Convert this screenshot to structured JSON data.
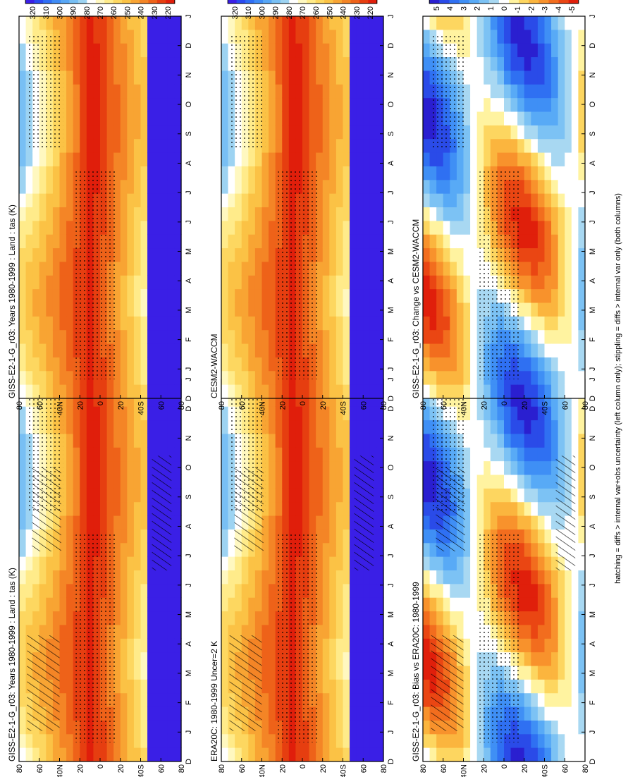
{
  "palettes": {
    "temperature": [
      "#3a1fe6",
      "#2a4af0",
      "#2f6ef5",
      "#3f8cf6",
      "#58a7f6",
      "#78bff4",
      "#9dd3f2",
      "#ffffff",
      "#fff8c0",
      "#ffeb8a",
      "#fdd760",
      "#fbc245",
      "#f8a433",
      "#f48526",
      "#ee6219",
      "#e63e10",
      "#e01e0b"
    ],
    "difference": [
      "#2a1fd0",
      "#2a4be8",
      "#2f70f2",
      "#3f8ff5",
      "#58aaf6",
      "#7cc2f4",
      "#a8d8f2",
      "#ffffff",
      "#fff3a0",
      "#fdd660",
      "#fbb53e",
      "#f8922c",
      "#f26d1e",
      "#ea4613",
      "#e01f0b"
    ]
  },
  "footer": {
    "note": "hatching = diffs > internal var+obs uncertainty (left column only); stippling = diffs > internal var only (both columns)"
  },
  "chart_data": [
    {
      "id": "p1",
      "type": "heatmap",
      "title": "GISS-E2-1-G_r03: Years 1980-1999 : Land : tas (K)",
      "x_ticks": [
        "D",
        "J",
        "F",
        "M",
        "A",
        "M",
        "J",
        "J",
        "A",
        "S",
        "O",
        "N",
        "D",
        "J"
      ],
      "y_ticks": [
        "80",
        "60",
        "40N",
        "20",
        "0",
        "20",
        "40S",
        "60",
        "80"
      ],
      "colorbar": {
        "ticks": [
          "320",
          "310",
          "300",
          "290",
          "280",
          "270",
          "260",
          "250",
          "240",
          "230",
          "220"
        ]
      }
    },
    {
      "id": "p2",
      "type": "heatmap",
      "title": "GISS-E2-1-G_r03: Years 1980-1999 : Land : tas (K)",
      "x_ticks": [
        "D",
        "J",
        "F",
        "M",
        "A",
        "M",
        "J",
        "J",
        "A",
        "S",
        "O",
        "N",
        "D",
        "J"
      ],
      "y_ticks": [
        "80",
        "60",
        "40N",
        "20",
        "0",
        "20",
        "40S",
        "60",
        "80"
      ],
      "colorbar": {
        "ticks": [
          "320",
          "310",
          "300",
          "290",
          "280",
          "270",
          "260",
          "250",
          "240",
          "230",
          "220"
        ]
      }
    },
    {
      "id": "p3",
      "type": "heatmap",
      "title": "ERA20C: 1980-1999 Uncer=2 K",
      "x_ticks": [
        "D",
        "J",
        "F",
        "M",
        "A",
        "M",
        "J",
        "J",
        "A",
        "S",
        "O",
        "N",
        "D",
        "J"
      ],
      "y_ticks": [
        "80",
        "60",
        "40N",
        "20",
        "0",
        "20",
        "40S",
        "60",
        "80"
      ],
      "colorbar": {
        "ticks": [
          "320",
          "310",
          "300",
          "290",
          "280",
          "270",
          "260",
          "250",
          "240",
          "230",
          "220"
        ]
      }
    },
    {
      "id": "p4",
      "type": "heatmap",
      "title": "CESM2-WACCM",
      "x_ticks": [
        "D",
        "J",
        "F",
        "M",
        "A",
        "M",
        "J",
        "J",
        "A",
        "S",
        "O",
        "N",
        "D",
        "J"
      ],
      "y_ticks": [
        "80",
        "60",
        "40N",
        "20",
        "0",
        "20",
        "40S",
        "60",
        "80"
      ],
      "colorbar": {
        "ticks": [
          "320",
          "310",
          "300",
          "290",
          "280",
          "270",
          "260",
          "250",
          "240",
          "230",
          "220"
        ]
      }
    },
    {
      "id": "p5",
      "type": "heatmap",
      "title": "GISS-E2-1-G_r03: Bias vs ERA20C: 1980-1999",
      "x_ticks": [
        "D",
        "J",
        "F",
        "M",
        "A",
        "M",
        "J",
        "J",
        "A",
        "S",
        "O",
        "N",
        "D",
        "J"
      ],
      "y_ticks": [
        "80",
        "60",
        "40N",
        "20",
        "0",
        "20",
        "40S",
        "60",
        "80"
      ],
      "colorbar": {
        "ticks": [
          "5",
          "4",
          "3",
          "2",
          "1",
          "0",
          "-1",
          "-2",
          "-3",
          "-4",
          "-5"
        ]
      }
    },
    {
      "id": "p6",
      "type": "heatmap",
      "title": "GISS-E2-1-G_r03: Change vs CESM2-WACCM",
      "x_ticks": [
        "D",
        "J",
        "F",
        "M",
        "A",
        "M",
        "J",
        "J",
        "A",
        "S",
        "O",
        "N",
        "D",
        "J"
      ],
      "y_ticks": [
        "80",
        "60",
        "40N",
        "20",
        "0",
        "20",
        "40S",
        "60",
        "80"
      ],
      "colorbar": {
        "ticks": [
          "5",
          "4",
          "3",
          "2",
          "1",
          "0",
          "-1",
          "-2",
          "-3",
          "-4",
          "-5"
        ]
      }
    }
  ]
}
